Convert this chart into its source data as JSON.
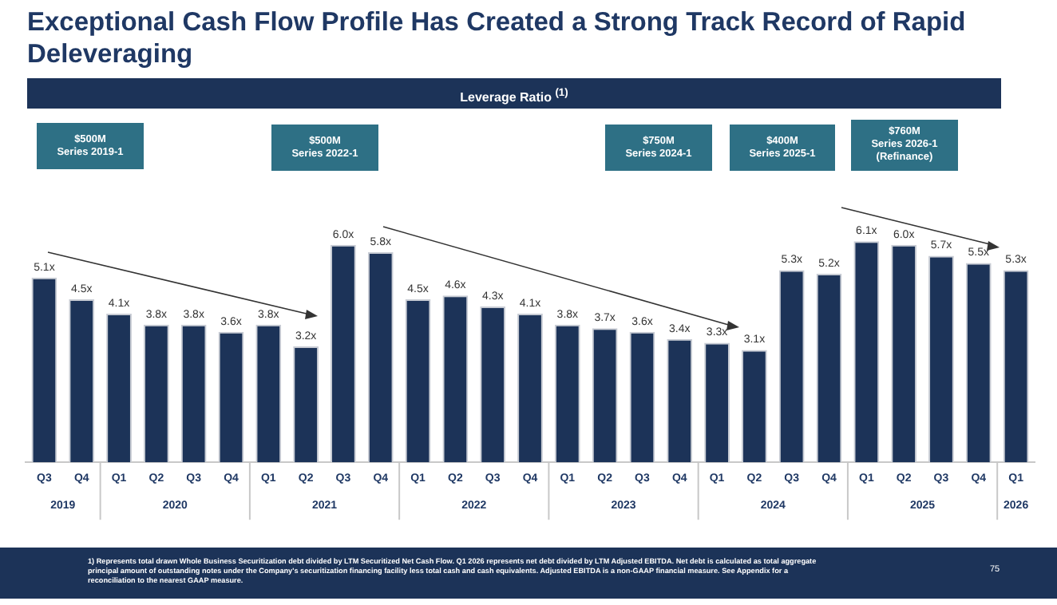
{
  "chart_data": {
    "type": "bar",
    "title": "Exceptional Cash Flow Profile Has Created a Strong Track Record of Rapid Deleveraging",
    "subtitle": "Leverage Ratio $^{(1)}$",
    "categories": [
      "Q3",
      "Q4",
      "Q1",
      "Q2",
      "Q3",
      "Q4",
      "Q1",
      "Q2",
      "Q3",
      "Q4",
      "Q1",
      "Q2",
      "Q3",
      "Q4",
      "Q1",
      "Q2",
      "Q3",
      "Q4",
      "Q1",
      "Q2",
      "Q3",
      "Q4",
      "Q1",
      "Q2",
      "Q3",
      "Q4",
      "Q1"
    ],
    "values": [
      5.1,
      4.5,
      4.1,
      3.8,
      3.8,
      3.6,
      3.8,
      3.2,
      6.0,
      5.8,
      4.5,
      4.6,
      4.3,
      4.1,
      3.8,
      3.7,
      3.6,
      3.4,
      3.3,
      3.1,
      5.3,
      5.2,
      6.1,
      6.0,
      5.7,
      5.5,
      5.3
    ],
    "value_labels": [
      "5.1x",
      "4.5x",
      "4.1x",
      "3.8x",
      "3.8x",
      "3.6x",
      "3.8x",
      "3.2x",
      "6.0x",
      "5.8x",
      "4.5x",
      "4.6x",
      "4.3x",
      "4.1x",
      "3.8x",
      "3.7x",
      "3.6x",
      "3.4x",
      "3.3x",
      "3.1x",
      "5.3x",
      "5.2x",
      "6.1x",
      "6.0x",
      "5.7x",
      "5.5x",
      "5.3x"
    ],
    "color": "#1c3358",
    "grid": false,
    "legend": false,
    "tick_labels": "x",
    "annotations": [
      "$500M\nSeries 2019-1",
      "$500M\nSeries 2022-1",
      "$750M\nSeries 2024-1",
      "$400M\nSeries 2025-1",
      "$760M\nSeries 2026-1\n(Refinance)",
      "1)   Represents total drawn Whole Business Securitization debt divided by LTM Securitized Net Cash Flow. Q1 2026 represents net debt divided by LTM Adjusted EBITDA. Net debt is calculated as total aggregate principal amount of outstanding notes under the Company's securitization financing facility less total cash and cash equivalents. Adjusted EBITDA is a non-GAAP financial measure. See Appendix for a reconciliation to the nearest GAAP measure.",
      "75",
      "2019",
      "2020",
      "2021",
      "2022",
      "2023",
      "2024",
      "2025",
      "2026"
    ]
  }
}
